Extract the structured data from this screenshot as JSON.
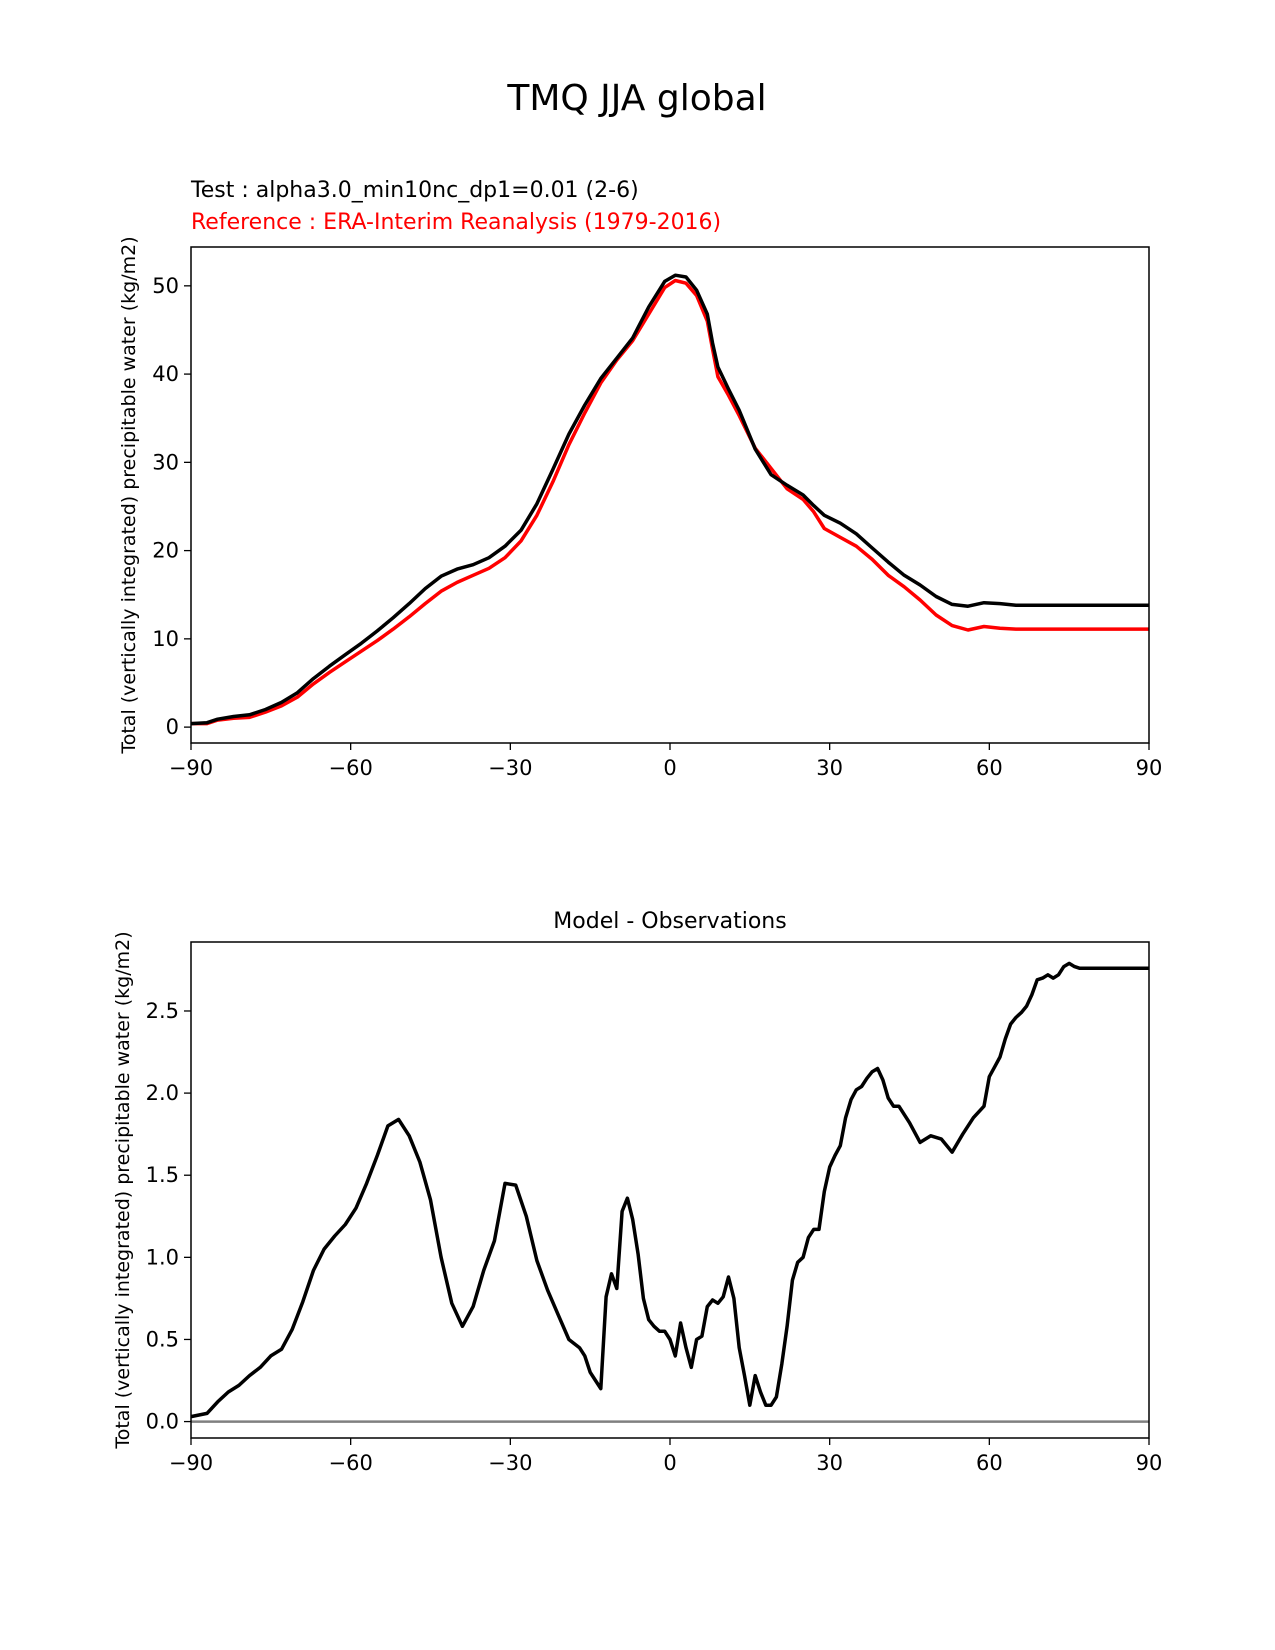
{
  "suptitle": "TMQ JJA global",
  "colors": {
    "test": "#000000",
    "reference": "#ff0000",
    "zero_line": "#808080"
  },
  "chart_data": [
    {
      "type": "line",
      "title_test": "Test : alpha3.0_min10nc_dp1=0.01 (2-6)",
      "title_reference": "Reference : ERA-Interim Reanalysis (1979-2016)",
      "xlabel": "",
      "ylabel": "Total (vertically integrated) precipitable water (kg/m2)",
      "xlim": [
        -90,
        90
      ],
      "ylim": [
        -1.8,
        54.4
      ],
      "xticks": [
        -90,
        -60,
        -30,
        0,
        30,
        60,
        90
      ],
      "xtick_labels": [
        "−90",
        "−60",
        "−30",
        "0",
        "30",
        "60",
        "90"
      ],
      "yticks": [
        0,
        10,
        20,
        30,
        40,
        50
      ],
      "ytick_labels": [
        "0",
        "10",
        "20",
        "30",
        "40",
        "50"
      ],
      "x": [
        -90,
        -87,
        -85,
        -82,
        -79,
        -76,
        -73,
        -70,
        -67,
        -64,
        -61,
        -58,
        -55,
        -52,
        -49,
        -46,
        -43,
        -40,
        -37,
        -34,
        -31,
        -28,
        -25,
        -22,
        -19,
        -16,
        -13,
        -10,
        -7,
        -4,
        -1,
        1,
        3,
        5,
        7,
        8,
        9,
        11,
        13,
        16,
        19,
        22,
        25,
        27,
        29,
        32,
        35,
        38,
        41,
        44,
        47,
        50,
        53,
        56,
        59,
        62,
        65,
        68,
        71,
        74,
        77,
        80,
        83,
        86,
        90
      ],
      "series": [
        {
          "name": "Test",
          "values": [
            0.4,
            0.5,
            0.9,
            1.2,
            1.4,
            2.0,
            2.8,
            3.9,
            5.5,
            6.9,
            8.2,
            9.5,
            10.9,
            12.4,
            14.0,
            15.7,
            17.1,
            17.9,
            18.4,
            19.2,
            20.5,
            22.3,
            25.3,
            29.2,
            33.2,
            36.5,
            39.5,
            41.8,
            44.1,
            47.6,
            50.5,
            51.2,
            51.0,
            49.5,
            46.8,
            43.5,
            40.8,
            38.3,
            35.9,
            31.5,
            28.6,
            27.4,
            26.3,
            25.1,
            24.0,
            23.1,
            21.9,
            20.3,
            18.7,
            17.2,
            16.1,
            14.8,
            13.9,
            13.7,
            14.1,
            14.0,
            13.8,
            13.8,
            13.8,
            13.8,
            13.8,
            13.8,
            13.8,
            13.8,
            13.8
          ]
        },
        {
          "name": "Reference",
          "values": [
            0.4,
            0.4,
            0.8,
            1.0,
            1.1,
            1.7,
            2.4,
            3.4,
            4.9,
            6.2,
            7.4,
            8.6,
            9.8,
            11.1,
            12.5,
            14.0,
            15.4,
            16.4,
            17.2,
            18.0,
            19.2,
            21.1,
            24.0,
            27.8,
            32.0,
            35.6,
            39.0,
            41.6,
            43.8,
            46.8,
            49.8,
            50.6,
            50.3,
            48.9,
            46.0,
            42.8,
            39.7,
            37.6,
            35.3,
            31.6,
            29.3,
            27.0,
            25.8,
            24.4,
            22.5,
            21.5,
            20.5,
            19.0,
            17.2,
            15.9,
            14.4,
            12.7,
            11.5,
            11.0,
            11.4,
            11.2,
            11.1,
            11.1,
            11.1,
            11.1,
            11.1,
            11.1,
            11.1,
            11.1,
            11.1
          ]
        }
      ]
    },
    {
      "type": "line",
      "title": "Model - Observations",
      "xlabel": "",
      "ylabel": "Total (vertically integrated) precipitable water (kg/m2)",
      "xlim": [
        -90,
        90
      ],
      "ylim": [
        -0.1,
        2.92
      ],
      "xticks": [
        -90,
        -60,
        -30,
        0,
        30,
        60,
        90
      ],
      "xtick_labels": [
        "−90",
        "−60",
        "−30",
        "0",
        "30",
        "60",
        "90"
      ],
      "yticks": [
        0.0,
        0.5,
        1.0,
        1.5,
        2.0,
        2.5
      ],
      "ytick_labels": [
        "0.0",
        "0.5",
        "1.0",
        "1.5",
        "2.0",
        "2.5"
      ],
      "zero_line": 0,
      "x": [
        -90,
        -87,
        -85,
        -83,
        -81,
        -79,
        -77,
        -75,
        -73,
        -71,
        -69,
        -67,
        -65,
        -63,
        -61,
        -59,
        -57,
        -55,
        -53,
        -51,
        -49,
        -47,
        -45,
        -43,
        -41,
        -39,
        -37,
        -35,
        -33,
        -31,
        -29,
        -27,
        -25,
        -23,
        -21,
        -19,
        -17,
        -16,
        -15,
        -14,
        -13,
        -12,
        -11,
        -10,
        -9,
        -8,
        -7,
        -6,
        -5,
        -4,
        -3,
        -2,
        -1,
        0,
        1,
        2,
        3,
        4,
        5,
        6,
        7,
        8,
        9,
        10,
        11,
        12,
        13,
        14,
        15,
        16,
        17,
        18,
        19,
        20,
        21,
        22,
        23,
        24,
        25,
        26,
        27,
        28,
        29,
        30,
        31,
        32,
        33,
        34,
        35,
        36,
        37,
        38,
        39,
        40,
        41,
        42,
        43,
        45,
        47,
        49,
        51,
        53,
        55,
        57,
        59,
        60,
        61,
        62,
        63,
        64,
        65,
        66,
        67,
        68,
        69,
        70,
        71,
        72,
        73,
        74,
        75,
        76,
        77,
        78,
        79,
        80,
        81,
        82,
        83,
        84,
        85,
        86,
        87,
        88,
        89,
        90
      ],
      "series": [
        {
          "name": "Model - Observations",
          "values": [
            0.03,
            0.05,
            0.12,
            0.18,
            0.22,
            0.28,
            0.33,
            0.4,
            0.44,
            0.56,
            0.73,
            0.92,
            1.05,
            1.13,
            1.2,
            1.3,
            1.45,
            1.62,
            1.8,
            1.84,
            1.74,
            1.58,
            1.35,
            1.0,
            0.72,
            0.58,
            0.7,
            0.92,
            1.1,
            1.45,
            1.44,
            1.25,
            0.98,
            0.8,
            0.65,
            0.5,
            0.45,
            0.4,
            0.3,
            0.25,
            0.2,
            0.76,
            0.9,
            0.81,
            1.28,
            1.36,
            1.23,
            1.02,
            0.75,
            0.62,
            0.58,
            0.55,
            0.55,
            0.5,
            0.4,
            0.6,
            0.45,
            0.33,
            0.5,
            0.52,
            0.7,
            0.74,
            0.72,
            0.76,
            0.88,
            0.75,
            0.45,
            0.28,
            0.1,
            0.28,
            0.18,
            0.1,
            0.1,
            0.15,
            0.35,
            0.58,
            0.86,
            0.97,
            1.0,
            1.12,
            1.17,
            1.17,
            1.4,
            1.55,
            1.62,
            1.68,
            1.85,
            1.96,
            2.02,
            2.04,
            2.09,
            2.13,
            2.15,
            2.08,
            1.97,
            1.92,
            1.92,
            1.82,
            1.7,
            1.74,
            1.72,
            1.64,
            1.75,
            1.85,
            1.92,
            2.1,
            2.16,
            2.22,
            2.33,
            2.42,
            2.46,
            2.49,
            2.53,
            2.6,
            2.69,
            2.7,
            2.72,
            2.7,
            2.72,
            2.77,
            2.79,
            2.77,
            2.76,
            2.76,
            2.76,
            2.76,
            2.76,
            2.76,
            2.76,
            2.76,
            2.76,
            2.76,
            2.76,
            2.76,
            2.76,
            2.76
          ]
        }
      ]
    }
  ]
}
